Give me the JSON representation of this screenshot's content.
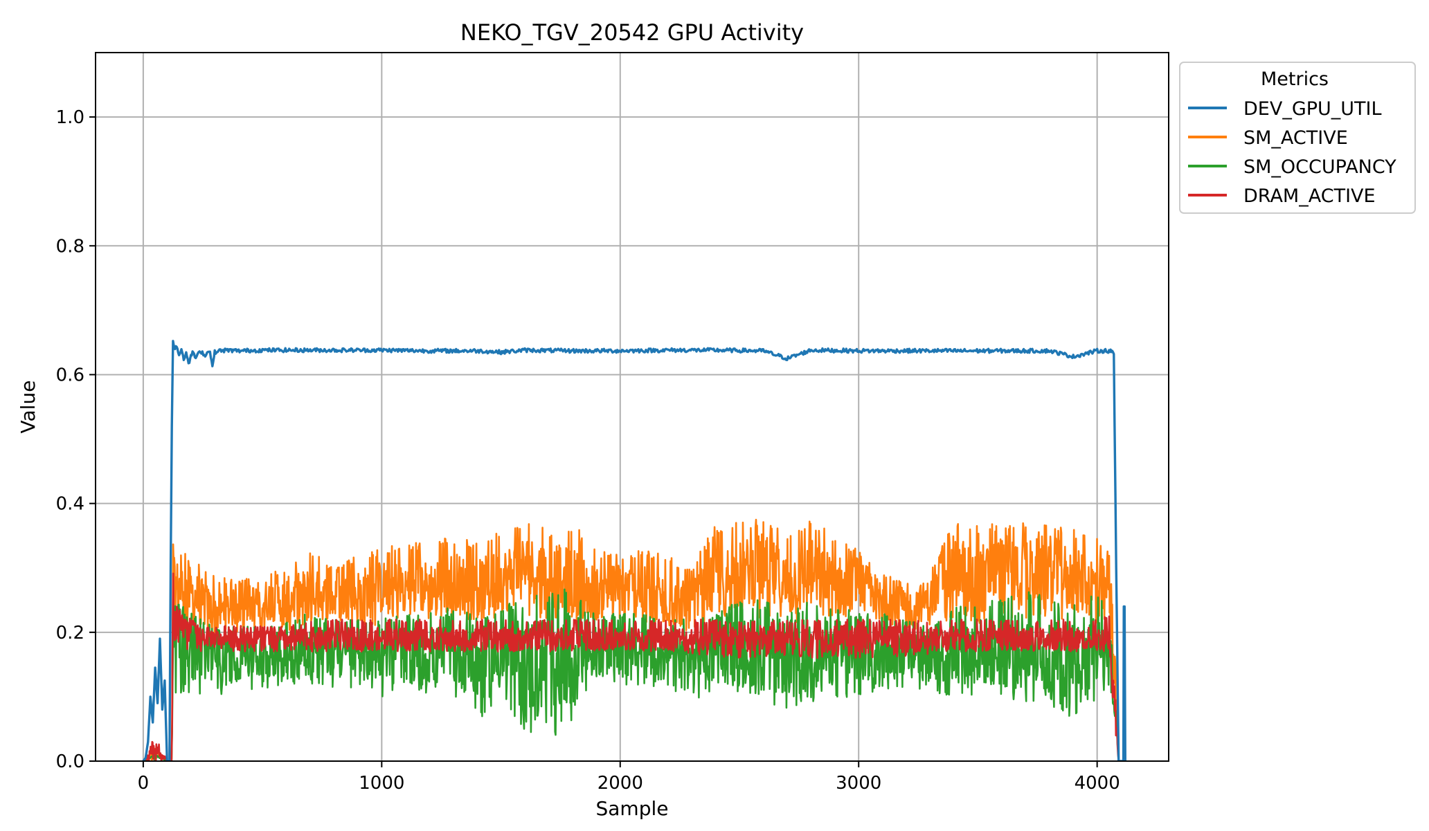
{
  "chart_data": {
    "type": "line",
    "title": "NEKO_TGV_20542 GPU Activity",
    "xlabel": "Sample",
    "ylabel": "Value",
    "xlim": [
      -200,
      4300
    ],
    "ylim": [
      0,
      1.1
    ],
    "xticks": [
      0,
      1000,
      2000,
      3000,
      4000
    ],
    "xtick_labels": [
      "0",
      "1000",
      "2000",
      "3000",
      "4000"
    ],
    "yticks": [
      0,
      0.2,
      0.4,
      0.6,
      0.8,
      1.0
    ],
    "ytick_labels": [
      "0.0",
      "0.2",
      "0.4",
      "0.6",
      "0.8",
      "1.0"
    ],
    "grid": true,
    "legend": {
      "title": "Metrics",
      "placement": "outside-upper-right"
    },
    "series": [
      {
        "name": "DEV_GPU_UTIL",
        "color": "#1f77b4",
        "x": [
          0,
          10,
          20,
          30,
          40,
          50,
          60,
          70,
          80,
          90,
          100,
          110,
          115,
          120,
          125,
          130,
          140,
          150,
          160,
          170,
          180,
          190,
          200,
          210,
          220,
          240,
          260,
          280,
          290,
          300,
          320,
          350,
          400,
          500,
          600,
          700,
          800,
          900,
          1000,
          1200,
          1400,
          1500,
          1600,
          1800,
          2000,
          2200,
          2400,
          2600,
          2700,
          2800,
          3000,
          3200,
          3400,
          3600,
          3800,
          3900,
          4000,
          4050,
          4060,
          4070,
          4080,
          4090,
          4100,
          4110,
          4112,
          4115,
          4118
        ],
        "y": [
          0,
          0.005,
          0.03,
          0.1,
          0.06,
          0.145,
          0.09,
          0.19,
          0.08,
          0.125,
          0.0,
          0.0,
          0.3,
          0.52,
          0.655,
          0.64,
          0.645,
          0.63,
          0.64,
          0.625,
          0.635,
          0.615,
          0.63,
          0.635,
          0.625,
          0.637,
          0.63,
          0.638,
          0.612,
          0.635,
          0.637,
          0.638,
          0.637,
          0.638,
          0.638,
          0.638,
          0.638,
          0.638,
          0.638,
          0.637,
          0.637,
          0.635,
          0.638,
          0.637,
          0.637,
          0.638,
          0.638,
          0.637,
          0.625,
          0.638,
          0.637,
          0.637,
          0.637,
          0.637,
          0.637,
          0.628,
          0.637,
          0.637,
          0.637,
          0.63,
          0.3,
          0.0,
          0.0,
          0.0,
          0.24,
          0.24,
          0.0
        ]
      },
      {
        "name": "SM_ACTIVE",
        "color": "#ff7f0e",
        "x": [
          0,
          50,
          100,
          120,
          125,
          130,
          200,
          300,
          400,
          500,
          600,
          700,
          800,
          900,
          1000,
          1100,
          1200,
          1300,
          1400,
          1500,
          1600,
          1700,
          1800,
          1900,
          2000,
          2100,
          2200,
          2300,
          2400,
          2500,
          2600,
          2700,
          2800,
          2900,
          3000,
          3100,
          3200,
          3300,
          3400,
          3500,
          3600,
          3700,
          3800,
          3900,
          4000,
          4050,
          4080,
          4090,
          4100
        ],
        "y": [
          0,
          0.02,
          0.0,
          0.0,
          0.3,
          0.27,
          0.26,
          0.23,
          0.24,
          0.25,
          0.25,
          0.26,
          0.25,
          0.26,
          0.27,
          0.27,
          0.27,
          0.28,
          0.27,
          0.28,
          0.3,
          0.29,
          0.28,
          0.26,
          0.27,
          0.26,
          0.25,
          0.24,
          0.28,
          0.29,
          0.3,
          0.27,
          0.29,
          0.27,
          0.28,
          0.25,
          0.24,
          0.25,
          0.3,
          0.28,
          0.3,
          0.29,
          0.3,
          0.28,
          0.27,
          0.27,
          0.1,
          0.0,
          0.0
        ],
        "low": [
          0,
          0,
          0,
          0,
          0.25,
          0.2,
          0.2,
          0.2,
          0.2,
          0.2,
          0.2,
          0.21,
          0.21,
          0.21,
          0.21,
          0.22,
          0.22,
          0.22,
          0.22,
          0.22,
          0.22,
          0.22,
          0.22,
          0.21,
          0.21,
          0.21,
          0.21,
          0.2,
          0.21,
          0.22,
          0.22,
          0.21,
          0.22,
          0.21,
          0.22,
          0.21,
          0.2,
          0.21,
          0.22,
          0.21,
          0.22,
          0.22,
          0.22,
          0.22,
          0.21,
          0.21,
          0.05,
          0,
          0
        ],
        "high": [
          0,
          0.02,
          0,
          0,
          0.34,
          0.33,
          0.32,
          0.29,
          0.28,
          0.29,
          0.3,
          0.33,
          0.3,
          0.32,
          0.33,
          0.34,
          0.34,
          0.35,
          0.34,
          0.36,
          0.37,
          0.36,
          0.37,
          0.33,
          0.32,
          0.33,
          0.32,
          0.3,
          0.37,
          0.37,
          0.38,
          0.36,
          0.38,
          0.35,
          0.33,
          0.29,
          0.28,
          0.3,
          0.37,
          0.37,
          0.37,
          0.37,
          0.37,
          0.36,
          0.35,
          0.33,
          0.15,
          0,
          0
        ]
      },
      {
        "name": "SM_OCCUPANCY",
        "color": "#2ca02c",
        "x": [
          0,
          50,
          100,
          120,
          125,
          130,
          200,
          300,
          400,
          500,
          600,
          700,
          800,
          900,
          1000,
          1100,
          1200,
          1300,
          1400,
          1500,
          1600,
          1700,
          1800,
          1850,
          1900,
          2000,
          2100,
          2200,
          2300,
          2400,
          2500,
          2600,
          2700,
          2800,
          2900,
          3000,
          3100,
          3200,
          3300,
          3400,
          3500,
          3600,
          3700,
          3800,
          3900,
          4000,
          4050,
          4080,
          4090,
          4100
        ],
        "y": [
          0,
          0.01,
          0.0,
          0.0,
          0.22,
          0.2,
          0.17,
          0.16,
          0.16,
          0.16,
          0.17,
          0.17,
          0.17,
          0.16,
          0.17,
          0.17,
          0.16,
          0.17,
          0.15,
          0.16,
          0.15,
          0.15,
          0.15,
          0.17,
          0.17,
          0.17,
          0.17,
          0.17,
          0.16,
          0.17,
          0.17,
          0.17,
          0.16,
          0.17,
          0.17,
          0.16,
          0.17,
          0.17,
          0.16,
          0.17,
          0.17,
          0.17,
          0.17,
          0.16,
          0.16,
          0.17,
          0.17,
          0.05,
          0.0,
          0.0
        ],
        "low": [
          0,
          0,
          0,
          0,
          0.15,
          0.1,
          0.1,
          0.1,
          0.11,
          0.11,
          0.12,
          0.12,
          0.11,
          0.1,
          0.1,
          0.11,
          0.1,
          0.1,
          0.06,
          0.1,
          0.04,
          0.04,
          0.04,
          0.1,
          0.12,
          0.12,
          0.11,
          0.11,
          0.1,
          0.09,
          0.1,
          0.1,
          0.07,
          0.09,
          0.1,
          0.09,
          0.11,
          0.11,
          0.1,
          0.1,
          0.1,
          0.1,
          0.09,
          0.09,
          0.05,
          0.1,
          0.1,
          0.02,
          0,
          0
        ],
        "high": [
          0,
          0.01,
          0,
          0,
          0.25,
          0.25,
          0.23,
          0.21,
          0.21,
          0.21,
          0.22,
          0.23,
          0.22,
          0.22,
          0.22,
          0.23,
          0.23,
          0.24,
          0.23,
          0.24,
          0.26,
          0.26,
          0.27,
          0.24,
          0.23,
          0.23,
          0.23,
          0.22,
          0.22,
          0.23,
          0.25,
          0.25,
          0.24,
          0.25,
          0.25,
          0.23,
          0.23,
          0.22,
          0.21,
          0.24,
          0.25,
          0.26,
          0.27,
          0.25,
          0.26,
          0.26,
          0.26,
          0.08,
          0,
          0
        ]
      },
      {
        "name": "DRAM_ACTIVE",
        "color": "#d62728",
        "x": [
          0,
          50,
          100,
          120,
          125,
          130,
          200,
          300,
          400,
          500,
          600,
          700,
          800,
          900,
          1000,
          1200,
          1400,
          1600,
          1800,
          2000,
          2200,
          2400,
          2600,
          2800,
          3000,
          3200,
          3400,
          3600,
          3800,
          4000,
          4050,
          4080,
          4090,
          4100
        ],
        "y": [
          0,
          0.02,
          0.0,
          0.0,
          0.28,
          0.22,
          0.2,
          0.19,
          0.19,
          0.19,
          0.19,
          0.19,
          0.19,
          0.19,
          0.19,
          0.19,
          0.19,
          0.19,
          0.19,
          0.19,
          0.19,
          0.19,
          0.19,
          0.19,
          0.19,
          0.19,
          0.19,
          0.19,
          0.19,
          0.19,
          0.19,
          0.05,
          0.0,
          0.0
        ],
        "low": [
          0,
          0,
          0,
          0,
          0.2,
          0.18,
          0.17,
          0.17,
          0.17,
          0.17,
          0.17,
          0.17,
          0.17,
          0.17,
          0.17,
          0.17,
          0.17,
          0.17,
          0.17,
          0.17,
          0.17,
          0.16,
          0.16,
          0.16,
          0.16,
          0.16,
          0.17,
          0.17,
          0.17,
          0.17,
          0.17,
          0.02,
          0,
          0
        ],
        "high": [
          0,
          0.04,
          0,
          0,
          0.31,
          0.25,
          0.22,
          0.21,
          0.21,
          0.21,
          0.21,
          0.22,
          0.22,
          0.22,
          0.22,
          0.22,
          0.22,
          0.22,
          0.22,
          0.22,
          0.22,
          0.22,
          0.22,
          0.22,
          0.22,
          0.22,
          0.22,
          0.22,
          0.22,
          0.22,
          0.23,
          0.08,
          0,
          0
        ]
      }
    ]
  }
}
